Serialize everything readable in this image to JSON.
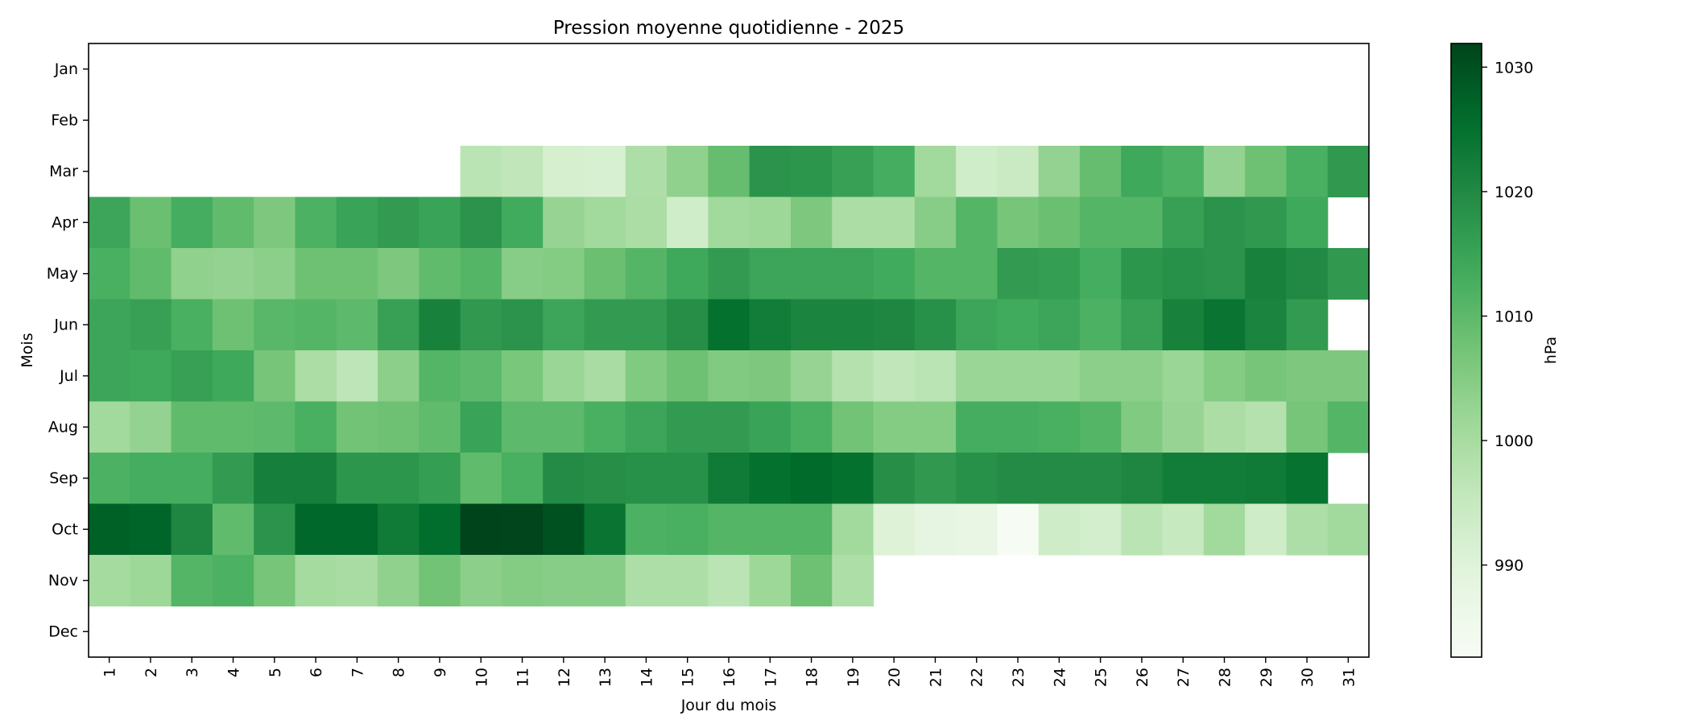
{
  "chart_data": {
    "type": "heatmap",
    "title": "Pression moyenne quotidienne - 2025",
    "xlabel": "Jour du mois",
    "ylabel": "Mois",
    "colorbar_label": "hPa",
    "colormap": "Greens",
    "colorbar_range": [
      982.6,
      1031.9
    ],
    "colorbar_ticks": [
      990,
      1000,
      1010,
      1020,
      1030
    ],
    "x_categories": [
      "1",
      "2",
      "3",
      "4",
      "5",
      "6",
      "7",
      "8",
      "9",
      "10",
      "11",
      "12",
      "13",
      "14",
      "15",
      "16",
      "17",
      "18",
      "19",
      "20",
      "21",
      "22",
      "23",
      "24",
      "25",
      "26",
      "27",
      "28",
      "29",
      "30",
      "31"
    ],
    "y_categories": [
      "Jan",
      "Feb",
      "Mar",
      "Apr",
      "May",
      "Jun",
      "Jul",
      "Aug",
      "Sep",
      "Oct",
      "Nov",
      "Dec"
    ],
    "values": [
      [
        null,
        null,
        null,
        null,
        null,
        null,
        null,
        null,
        null,
        null,
        null,
        null,
        null,
        null,
        null,
        null,
        null,
        null,
        null,
        null,
        null,
        null,
        null,
        null,
        null,
        null,
        null,
        null,
        null,
        null,
        null
      ],
      [
        null,
        null,
        null,
        null,
        null,
        null,
        null,
        null,
        null,
        null,
        null,
        null,
        null,
        null,
        null,
        null,
        null,
        null,
        null,
        null,
        null,
        null,
        null,
        null,
        null,
        null,
        null,
        null,
        null,
        null,
        null
      ],
      [
        null,
        null,
        null,
        null,
        null,
        null,
        null,
        null,
        null,
        997,
        996,
        992,
        991.5,
        999,
        1003.5,
        1009,
        1018,
        1017.5,
        1015.5,
        1013,
        1001,
        993,
        994.5,
        1003,
        1009,
        1014,
        1012,
        1003,
        1008,
        1012.5,
        1017
      ],
      [
        1014.5,
        1008.5,
        1013,
        1009.5,
        1006,
        1012,
        1015,
        1016.5,
        1015,
        1018,
        1013.5,
        1002.5,
        1001,
        999.5,
        993,
        1001,
        1001.5,
        1006,
        999.5,
        999.5,
        1004.5,
        1011,
        1007,
        1008.5,
        1011,
        1011,
        1015.5,
        1018,
        1017,
        1014,
        null
      ],
      [
        1012.5,
        1009.5,
        1003.5,
        1003,
        1004,
        1008,
        1008,
        1006,
        1009.5,
        1011,
        1004.5,
        1005,
        1008.5,
        1011,
        1014,
        1016.5,
        1014.5,
        1014.5,
        1014.5,
        1013.5,
        1011,
        1011,
        1016.5,
        1016,
        1013,
        1017.5,
        1018.5,
        1018,
        1021.5,
        1020,
        1017
      ],
      [
        1014.5,
        1015.5,
        1012.5,
        1008,
        1010.5,
        1011,
        1010,
        1015.5,
        1021.5,
        1017,
        1018,
        1014.5,
        1016.5,
        1016.5,
        1019,
        1025,
        1022.5,
        1021,
        1021,
        1020.5,
        1018.5,
        1014.5,
        1013.5,
        1014.5,
        1012,
        1015.5,
        1021.5,
        1024,
        1021,
        1016.5,
        null
      ],
      [
        1014.5,
        1014,
        1015.5,
        1014,
        1007,
        999.5,
        996.5,
        1004,
        1011,
        1010,
        1006.5,
        1002,
        1000,
        1005.5,
        1008,
        1005.5,
        1006,
        1002.5,
        998,
        996,
        997,
        1002,
        1002,
        1002,
        1004,
        1004,
        1002,
        1005,
        1007,
        1006,
        1006
      ],
      [
        1001,
        1003,
        1009.5,
        1009.5,
        1010,
        1012.5,
        1007.5,
        1008,
        1009.5,
        1015,
        1010,
        1010,
        1012.5,
        1014.5,
        1016.5,
        1016.5,
        1015,
        1012.5,
        1007.5,
        1005,
        1005,
        1013,
        1013,
        1012.5,
        1011,
        1005.5,
        1002.5,
        999.5,
        998,
        1007,
        1011
      ],
      [
        1012,
        1013,
        1013,
        1016.5,
        1022,
        1022,
        1017.5,
        1017.5,
        1016,
        1009.5,
        1012.5,
        1019.5,
        1019,
        1018.5,
        1018.5,
        1023,
        1025,
        1026,
        1025,
        1019,
        1017,
        1018.5,
        1019.5,
        1019.5,
        1019.5,
        1020.5,
        1022.5,
        1022.5,
        1023,
        1024.5,
        null
      ],
      [
        1027.5,
        1027,
        1020.5,
        1009.5,
        1018,
        1026.5,
        1026.5,
        1023,
        1025.5,
        1032,
        1031.8,
        1030,
        1024,
        1012,
        1012.5,
        1011,
        1011,
        1011,
        1001,
        990.5,
        988.5,
        987.5,
        983,
        993.5,
        992.5,
        997,
        995,
        1001,
        993.5,
        999,
        1001
      ],
      [
        1000.5,
        1001.5,
        1011,
        1012,
        1007,
        1000.5,
        1000,
        1003.5,
        1007.5,
        1004,
        1005,
        1004.5,
        1004.5,
        999,
        999,
        997,
        1001.5,
        1008,
        999,
        null,
        null,
        null,
        null,
        null,
        null,
        null,
        null,
        null,
        null,
        null,
        null
      ],
      [
        null,
        null,
        null,
        null,
        null,
        null,
        null,
        null,
        null,
        null,
        null,
        null,
        null,
        null,
        null,
        null,
        null,
        null,
        null,
        null,
        null,
        null,
        null,
        null,
        null,
        null,
        null,
        null,
        null,
        null,
        null
      ]
    ],
    "grid": false,
    "legend": "colorbar-right"
  }
}
